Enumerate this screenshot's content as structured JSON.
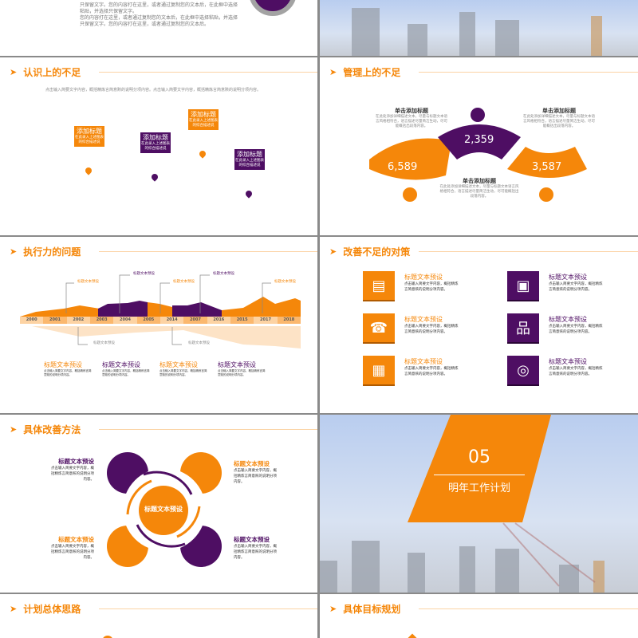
{
  "colors": {
    "accent": "#f5870a",
    "purple": "#4e0e63"
  },
  "slide_top": {
    "text_lines": [
      "只保留文字。您的内容打在这里，或者通过复制您的文本后，在此框中选择",
      "粘贴，并选择只保留文字。",
      "您的内容打在这里，或者通过复制您的文本后，在此框中选择粘贴，并选择",
      "只保留文字。您的内容打在这里，或者通过复制您的文本后。"
    ]
  },
  "slide_recognition": {
    "title": "认识上的不足",
    "intro": "点击输入简要文字内容，概括精炼言简意赅的说明分项内容。点击输入简要文字内容，概括精炼言简意赅的说明分项内容。",
    "tags": [
      {
        "title": "添加标题",
        "body": "在此录入上述图表的综合描述说"
      },
      {
        "title": "添加标题",
        "body": "在此录入上述图表的综合描述说"
      },
      {
        "title": "添加标题",
        "body": "在此录入上述图表的综合描述说"
      },
      {
        "title": "添加标题",
        "body": "在此录入上述图表的综合描述说"
      }
    ]
  },
  "slide_management": {
    "title": "管理上的不足",
    "items": [
      {
        "heading": "单击添加标题",
        "value": "6,589",
        "body": "在此处添加详细描述文本，尽量与标题文本语言风格相符合，语言描述尽量简洁生动，尽可能概括出段落内容。",
        "icon": "clipboard-icon"
      },
      {
        "heading": "单击添加标题",
        "value": "2,359",
        "body": "在此处添加详细描述文本，尽量与标题文本语言风格相符合，语言描述尽量简洁生动，尽可能概括出段落内容。",
        "icon": "document-icon"
      },
      {
        "heading": "单击添加标题",
        "value": "3,587",
        "body": "在此处添加详细描述文本，尽量与标题文本语言风格相符合，语言描述尽量简洁生动，尽可能概括出段落内容。",
        "icon": "briefcase-icon"
      }
    ]
  },
  "slide_execution": {
    "title": "执行力的问题",
    "years": [
      "2000",
      "2001",
      "2002",
      "2003",
      "2004",
      "2005",
      "2014",
      "2007",
      "2016",
      "2015",
      "2017",
      "2018"
    ],
    "callout": "标题文本预设",
    "columns": [
      {
        "heading": "标题文本预设",
        "body": "点击输入简要文字内容，概括精炼言简意赅的说明分项内容。"
      },
      {
        "heading": "标题文本预设",
        "body": "点击输入简要文字内容，概括精炼言简意赅的说明分项内容。"
      },
      {
        "heading": "标题文本预设",
        "body": "点击输入简要文字内容，概括精炼言简意赅的说明分项内容。"
      },
      {
        "heading": "标题文本预设",
        "body": "点击输入简要文字内容，概括精炼言简意赅的说明分项内容。"
      }
    ]
  },
  "slide_measures": {
    "title": "改善不足的对策",
    "items": [
      {
        "heading": "标题文本预设",
        "body": "点击输入简要文字内容，概括精炼言简意赅的说明分项内容。",
        "icon": "documents-icon"
      },
      {
        "heading": "标题文本预设",
        "body": "点击输入简要文字内容，概括精炼言简意赅的说明分项内容。",
        "icon": "clipboard-glasses-icon"
      },
      {
        "heading": "标题文本预设",
        "body": "点击输入简要文字内容，概括精炼言简意赅的说明分项内容。",
        "icon": "phone-icon"
      },
      {
        "heading": "标题文本预设",
        "body": "点击输入简要文字内容，概括精炼言简意赅的说明分项内容。",
        "icon": "org-chart-icon"
      },
      {
        "heading": "标题文本预设",
        "body": "点击输入简要文字内容，概括精炼言简意赅的说明分项内容。",
        "icon": "calendar-icon"
      },
      {
        "heading": "标题文本预设",
        "body": "点击输入简要文字内容，概括精炼言简意赅的说明分项内容。",
        "icon": "target-icon"
      }
    ]
  },
  "slide_methods": {
    "title": "具体改善方法",
    "center": "标题文本预设",
    "items": [
      {
        "heading": "标题文本预设",
        "body": "点击输入简要文字内容，概括精炼言简意赅的说明分项内容。"
      },
      {
        "heading": "标题文本预设",
        "body": "点击输入简要文字内容，概括精炼言简意赅的说明分项内容。"
      },
      {
        "heading": "标题文本预设",
        "body": "点击输入简要文字内容，概括精炼言简意赅的说明分项内容。"
      },
      {
        "heading": "标题文本预设",
        "body": "点击输入简要文字内容，概括精炼言简意赅的说明分项内容。"
      }
    ]
  },
  "slide_section": {
    "number": "05",
    "title": "明年工作计划"
  },
  "slide_plan": {
    "title": "计划总体思路"
  },
  "slide_goals": {
    "title": "具体目标规划"
  }
}
